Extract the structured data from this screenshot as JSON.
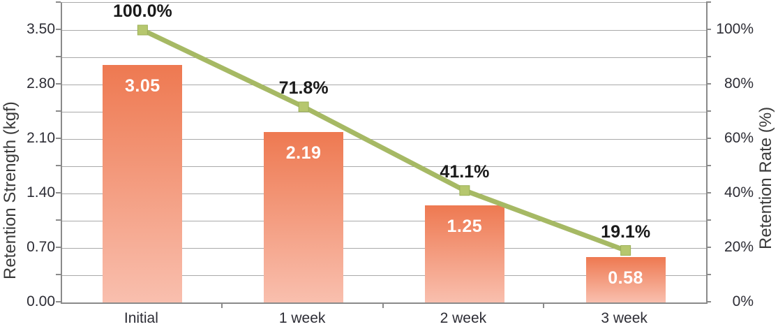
{
  "chart_data": {
    "type": "combo-bar-line",
    "categories": [
      "Initial",
      "1 week",
      "2 week",
      "3 week"
    ],
    "series": [
      {
        "name": "Retention Strength",
        "chart_type": "bar",
        "axis": "left",
        "values": [
          3.05,
          2.19,
          1.25,
          0.58
        ],
        "data_labels": [
          "3.05",
          "2.19",
          "1.25",
          "0.58"
        ]
      },
      {
        "name": "Retention Rate",
        "chart_type": "line",
        "axis": "right",
        "values": [
          100.0,
          71.8,
          41.1,
          19.1
        ],
        "data_labels": [
          "100.0%",
          "71.8%",
          "41.1%",
          "19.1%"
        ]
      }
    ],
    "left_axis": {
      "label": "Retention Strength (kgf)",
      "min": 0,
      "max": 3.85,
      "label_step": 0.7,
      "grid_step": 0.35,
      "tick_labels": [
        "0.00",
        "0.70",
        "1.40",
        "2.10",
        "2.80",
        "3.50"
      ]
    },
    "right_axis": {
      "label": "Retention Rate (%)",
      "min": 0,
      "max": 110,
      "label_step": 20,
      "grid_step": 10,
      "tick_labels": [
        "0%",
        "20%",
        "40%",
        "60%",
        "80%",
        "100%"
      ]
    },
    "grid": true,
    "legend": "none",
    "colors": {
      "bar_gradient_top": "#ee7951",
      "bar_gradient_bottom": "#f9bfae",
      "bar_label_text": "#ffffff",
      "line": "#a6b964",
      "marker_fill": "#b6c76e",
      "marker_stroke": "#9cb058",
      "data_label_text": "#1a1a1a",
      "gridline": "#a9a9a9",
      "axis_line": "#8a8a8a",
      "tick_text": "#2d2d35",
      "axis_title_text": "#3a3a3a",
      "background": "#ffffff"
    }
  }
}
